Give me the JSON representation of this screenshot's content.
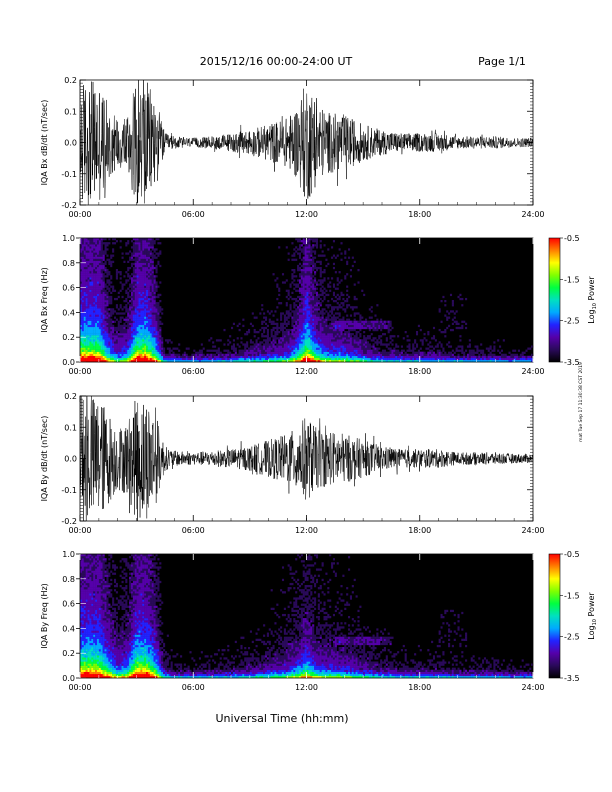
{
  "header": {
    "title": "2015/12/16  00:00-24:00 UT",
    "page": "Page 1/1"
  },
  "side_note": "mat Tue Sep 17 11:30:38 CST 2019",
  "xaxis": {
    "label": "Universal Time (hh:mm)",
    "ticks": [
      "00:00",
      "06:00",
      "12:00",
      "18:00",
      "24:00"
    ],
    "range": [
      0,
      24
    ]
  },
  "colorbar": {
    "label": "Log10 Power",
    "label_main": "Log",
    "label_sub": "10",
    "label_rest": " Power",
    "range": [
      -3.5,
      -0.5
    ],
    "ticks": [
      "-0.5",
      "-1.5",
      "-2.5",
      "-3.5"
    ],
    "colors": [
      "#000000",
      "#2a0a5a",
      "#5500aa",
      "#2222ff",
      "#00aaff",
      "#00e0c0",
      "#00ff40",
      "#80ff00",
      "#ffff00",
      "#ff8000",
      "#ff0000"
    ]
  },
  "chart_data": [
    {
      "type": "line",
      "ylabel": "IQA Bx dB/dt (nT/sec)",
      "ylim": [
        -0.2,
        0.2
      ],
      "yticks": [
        "0.2",
        "0.1",
        "0.0",
        "-0.1",
        "-0.2"
      ],
      "envelope": {
        "x_hours": [
          0,
          0.5,
          1,
          1.5,
          2,
          2.5,
          3,
          3.5,
          4,
          4.5,
          5,
          6,
          7,
          8,
          9,
          10,
          11,
          11.5,
          12,
          12.5,
          13,
          14,
          15,
          16,
          17,
          18,
          19,
          20,
          21,
          22,
          23,
          24
        ],
        "amplitude": [
          0.2,
          0.2,
          0.2,
          0.12,
          0.08,
          0.1,
          0.2,
          0.2,
          0.15,
          0.03,
          0.02,
          0.015,
          0.02,
          0.03,
          0.04,
          0.06,
          0.08,
          0.12,
          0.2,
          0.14,
          0.1,
          0.09,
          0.06,
          0.04,
          0.03,
          0.03,
          0.03,
          0.02,
          0.02,
          0.02,
          0.015,
          0.015
        ]
      }
    },
    {
      "type": "heatmap",
      "ylabel": "IQA Bx Freq (Hz)",
      "ylim": [
        0.0,
        1.0
      ],
      "yticks": [
        "1.0",
        "0.8",
        "0.6",
        "0.4",
        "0.2",
        "0.0"
      ],
      "zlim": [
        -3.5,
        -0.5
      ]
    },
    {
      "type": "line",
      "ylabel": "IQA By dB/dt (nT/sec)",
      "ylim": [
        -0.2,
        0.2
      ],
      "yticks": [
        "0.2",
        "0.1",
        "0.0",
        "-0.1",
        "-0.2"
      ],
      "envelope": {
        "x_hours": [
          0,
          0.5,
          1,
          1.5,
          2,
          2.5,
          3,
          3.5,
          4,
          4.5,
          5,
          6,
          7,
          8,
          9,
          10,
          11,
          11.5,
          12,
          12.5,
          13,
          14,
          15,
          16,
          17,
          18,
          19,
          20,
          21,
          22,
          23,
          24
        ],
        "amplitude": [
          0.2,
          0.2,
          0.2,
          0.15,
          0.1,
          0.12,
          0.2,
          0.2,
          0.15,
          0.04,
          0.025,
          0.02,
          0.025,
          0.03,
          0.04,
          0.06,
          0.08,
          0.1,
          0.14,
          0.1,
          0.09,
          0.08,
          0.06,
          0.04,
          0.03,
          0.03,
          0.03,
          0.02,
          0.02,
          0.02,
          0.015,
          0.015
        ]
      }
    },
    {
      "type": "heatmap",
      "ylabel": "IQA By Freq (Hz)",
      "ylim": [
        0.0,
        1.0
      ],
      "yticks": [
        "1.0",
        "0.8",
        "0.6",
        "0.4",
        "0.2",
        "0.0"
      ],
      "zlim": [
        -3.5,
        -0.5
      ]
    }
  ]
}
